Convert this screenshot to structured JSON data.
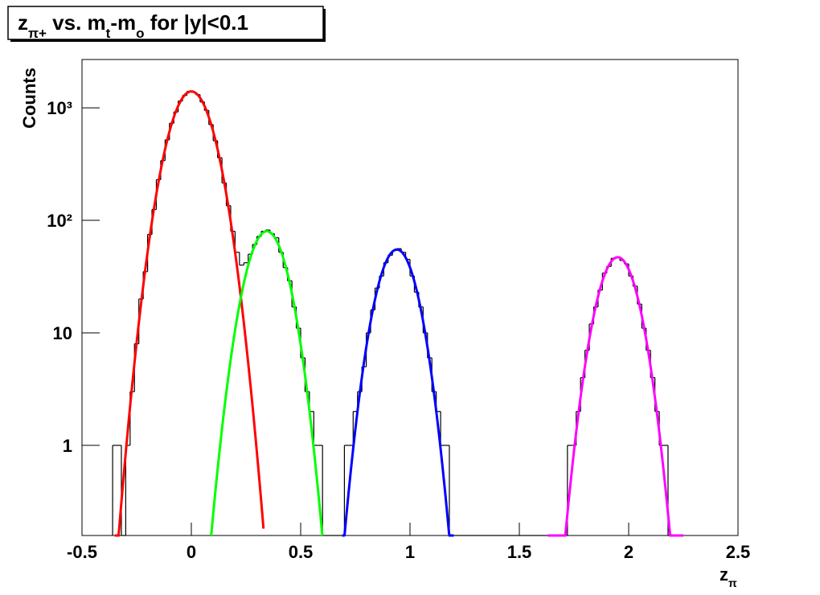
{
  "chart_data": {
    "type": "histogram",
    "title": [
      {
        "text": "z"
      },
      {
        "text": "π+",
        "sub": true
      },
      {
        "text": " vs. m"
      },
      {
        "text": "t",
        "sub": true
      },
      {
        "text": "-m"
      },
      {
        "text": "o",
        "sub": true
      },
      {
        "text": " for |y|<0.1"
      }
    ],
    "ylabel": "Counts",
    "xlabel": [
      {
        "text": "z"
      },
      {
        "text": "π",
        "sub": true
      }
    ],
    "xlim": [
      -0.5,
      2.5
    ],
    "xticks": [
      -0.5,
      0,
      0.5,
      1,
      1.5,
      2,
      2.5
    ],
    "ylim": [
      0.158,
      2690
    ],
    "ylog": true,
    "yticks": [
      1,
      10,
      {
        "value": 100,
        "label": "10²"
      },
      {
        "value": 1000,
        "label": "10³"
      }
    ],
    "color": "#000000",
    "bins": [
      -0.36,
      -0.34,
      -0.32,
      -0.3,
      -0.28,
      -0.26,
      -0.24,
      -0.22,
      -0.2,
      -0.18,
      -0.16,
      -0.14,
      -0.12,
      -0.1,
      -0.08,
      -0.06,
      -0.04,
      -0.02,
      0,
      0.02,
      0.04,
      0.06,
      0.08,
      0.1,
      0.12,
      0.14,
      0.16,
      0.18,
      0.2,
      0.22,
      0.24,
      0.26,
      0.28,
      0.3,
      0.32,
      0.34,
      0.36,
      0.38,
      0.4,
      0.42,
      0.44,
      0.46,
      0.48,
      0.5,
      0.52,
      0.54,
      0.56,
      0.58,
      0.6,
      0.62,
      0.64,
      0.66,
      0.68,
      0.7,
      0.72,
      0.74,
      0.76,
      0.78,
      0.8,
      0.82,
      0.84,
      0.86,
      0.88,
      0.9,
      0.92,
      0.94,
      0.96,
      0.98,
      1,
      1.02,
      1.04,
      1.06,
      1.08,
      1.1,
      1.12,
      1.14,
      1.16,
      1.18,
      1.2,
      1.22,
      1.24,
      1.26,
      1.28,
      1.3,
      1.32,
      1.34,
      1.36,
      1.38,
      1.4,
      1.42,
      1.44,
      1.46,
      1.48,
      1.5,
      1.52,
      1.54,
      1.56,
      1.58,
      1.6,
      1.62,
      1.64,
      1.66,
      1.68,
      1.7,
      1.72,
      1.74,
      1.76,
      1.78,
      1.8,
      1.82,
      1.84,
      1.86,
      1.88,
      1.9,
      1.92,
      1.94,
      1.96,
      1.98,
      2,
      2.02,
      2.04,
      2.06,
      2.08,
      2.1,
      2.12,
      2.14,
      2.16,
      2.18,
      2.2,
      2.22,
      2.24
    ],
    "values": [
      1,
      1,
      0,
      1,
      3,
      8,
      20,
      35,
      75,
      125,
      230,
      340,
      520,
      730,
      920,
      1150,
      1290,
      1400,
      1380,
      1310,
      1130,
      950,
      710,
      510,
      360,
      215,
      135,
      80,
      52,
      40,
      42,
      50,
      61,
      72,
      80,
      82,
      76,
      70,
      52,
      38,
      29,
      17,
      11,
      6,
      3,
      2,
      1,
      1,
      0,
      0,
      0,
      0,
      0,
      1,
      1,
      2,
      3,
      5,
      10,
      16,
      25,
      32,
      42,
      49,
      54,
      56,
      52,
      45,
      32,
      23,
      17,
      10,
      6,
      3,
      2,
      1,
      1,
      0,
      0,
      0,
      0,
      0,
      0,
      0,
      0,
      0,
      0,
      0,
      0,
      0,
      0,
      0,
      0,
      0,
      0,
      0,
      0,
      0,
      0,
      0,
      0,
      0,
      0,
      0,
      1,
      1,
      2,
      4,
      7,
      12,
      17,
      24,
      34,
      39,
      46,
      47,
      44,
      41,
      32,
      26,
      18,
      11,
      7,
      4,
      2,
      1,
      1,
      0,
      0,
      0
    ],
    "fits": [
      {
        "color": "#ff0000",
        "constant": 1400,
        "mean": 0,
        "sigma": 0.078,
        "range": [
          -0.35,
          0.33
        ]
      },
      {
        "color": "#00ff00",
        "constant": 80,
        "mean": 0.345,
        "sigma": 0.072,
        "range": [
          0.09,
          0.6
        ]
      },
      {
        "color": "#0000ff",
        "constant": 55,
        "mean": 0.94,
        "sigma": 0.07,
        "range": [
          0.69,
          1.2
        ]
      },
      {
        "color": "#ff00ff",
        "constant": 47,
        "mean": 1.95,
        "sigma": 0.071,
        "range": [
          1.63,
          2.25
        ]
      }
    ]
  }
}
